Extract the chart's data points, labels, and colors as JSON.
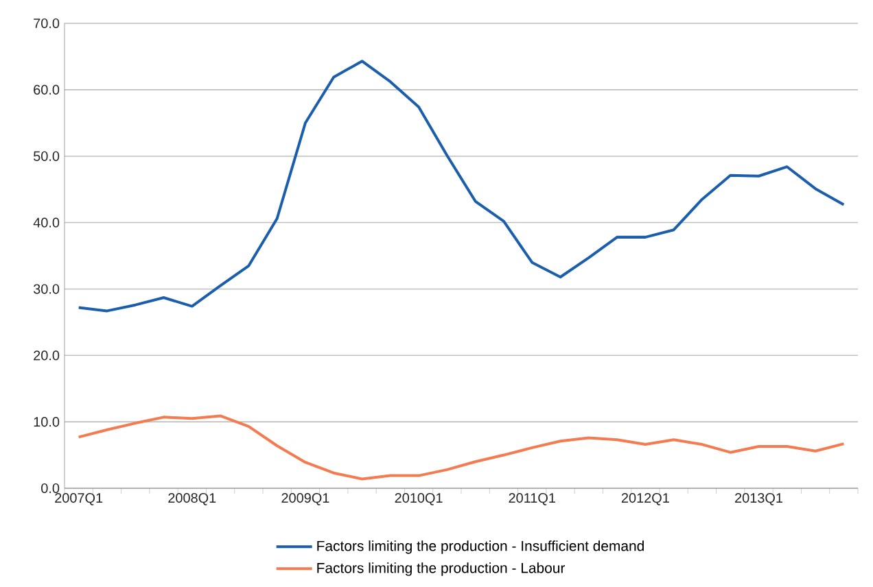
{
  "chart_data": {
    "type": "line",
    "categories": [
      "2007Q1",
      null,
      null,
      null,
      "2008Q1",
      null,
      null,
      null,
      "2009Q1",
      null,
      null,
      null,
      "2010Q1",
      null,
      null,
      null,
      "2011Q1",
      null,
      null,
      null,
      "2012Q1",
      null,
      null,
      null,
      "2013Q1",
      null,
      null,
      null
    ],
    "series": [
      {
        "name": "Factors limiting the production - Insufficient demand",
        "color": "#1b5fac",
        "values": [
          27.2,
          26.7,
          27.6,
          28.7,
          27.4,
          30.5,
          33.5,
          40.6,
          55.0,
          61.9,
          64.3,
          61.2,
          57.4,
          50.1,
          43.2,
          40.2,
          34.0,
          31.8,
          34.7,
          37.8,
          37.8,
          38.9,
          43.5,
          47.1,
          47.0,
          48.4,
          45.1,
          42.7
        ]
      },
      {
        "name": "Factors limiting the production - Labour",
        "color": "#f47a50",
        "values": [
          7.7,
          8.8,
          9.8,
          10.7,
          10.5,
          10.9,
          9.3,
          6.4,
          3.9,
          2.3,
          1.4,
          1.9,
          1.9,
          2.8,
          4.0,
          5.0,
          6.1,
          7.1,
          7.6,
          7.3,
          6.6,
          7.3,
          6.6,
          5.4,
          6.3,
          6.3,
          5.6,
          6.7
        ]
      }
    ],
    "ylim": [
      0,
      70
    ],
    "yticks": [
      {
        "value": 0,
        "label": "0.0"
      },
      {
        "value": 10,
        "label": "10.0"
      },
      {
        "value": 20,
        "label": "20.0"
      },
      {
        "value": 30,
        "label": "30.0"
      },
      {
        "value": 40,
        "label": "40.0"
      },
      {
        "value": 50,
        "label": "50.0"
      },
      {
        "value": 60,
        "label": "60.0"
      },
      {
        "value": 70,
        "label": "70.0"
      }
    ],
    "grid": "y",
    "legend": "bottom",
    "marker": "none",
    "line_style": "solid"
  }
}
